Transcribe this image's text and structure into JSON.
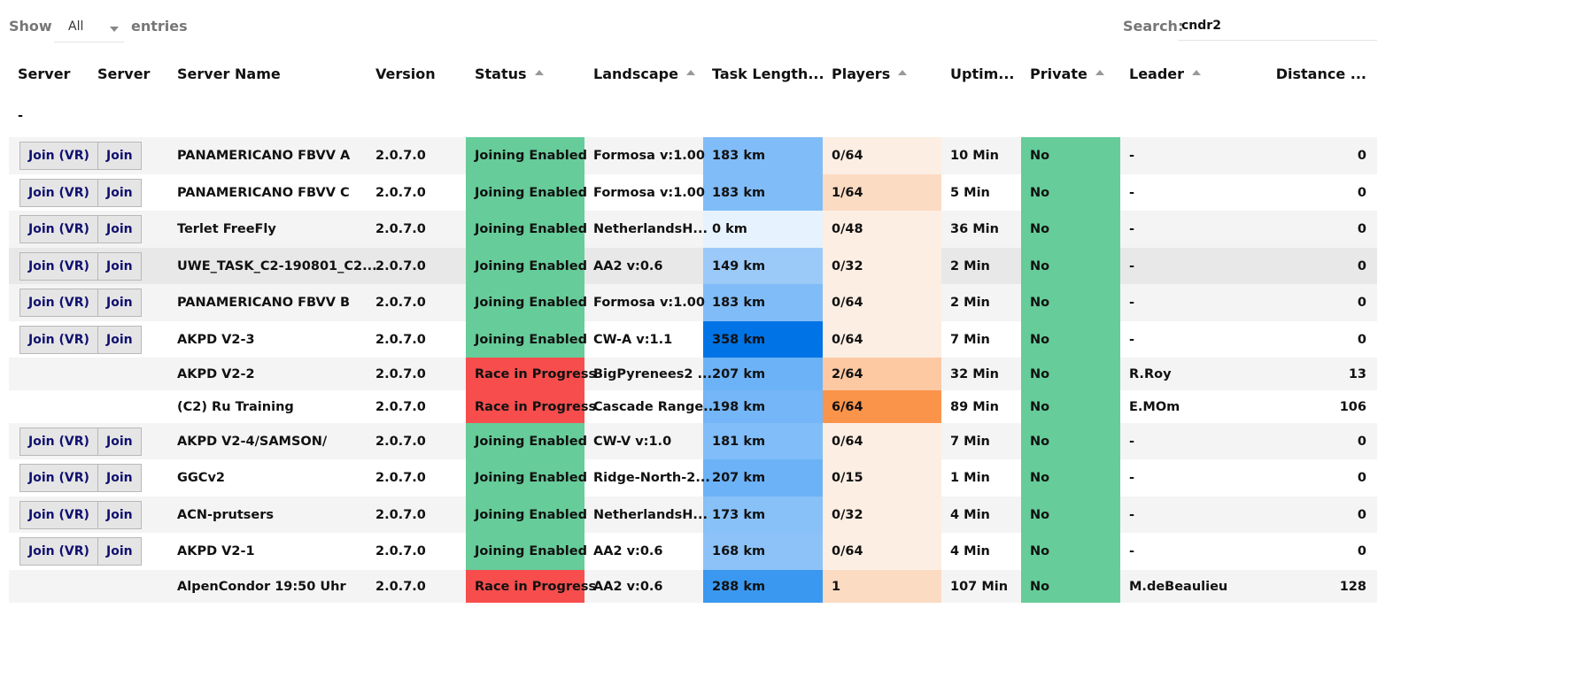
{
  "controls": {
    "show_label": "Show",
    "length_value": "All",
    "entries_label": "entries",
    "search_label": "Search:",
    "search_value": "cndr2"
  },
  "columns": [
    {
      "label": "Server",
      "sortable": false
    },
    {
      "label": "Server",
      "sortable": false
    },
    {
      "label": "Server Name",
      "sortable": false
    },
    {
      "label": "Version",
      "sortable": false
    },
    {
      "label": "Status",
      "sortable": true
    },
    {
      "label": "Landscape",
      "sortable": true
    },
    {
      "label": "Task Length...",
      "sortable": false
    },
    {
      "label": "Players",
      "sortable": true
    },
    {
      "label": "Uptim...",
      "sortable": false
    },
    {
      "label": "Private",
      "sortable": true
    },
    {
      "label": "Leader",
      "sortable": true
    },
    {
      "label": "Distance ...",
      "sortable": false
    }
  ],
  "filter_row": {
    "first": "-"
  },
  "buttons": {
    "join_vr": "Join (VR)",
    "join": "Join"
  },
  "colors": {
    "status_enabled": "#66cc99",
    "status_race": "#f74d4d",
    "private_no": "#66cc99",
    "task_scale": [
      "#e6f2fd",
      "#0073e6"
    ],
    "players_scale": [
      "#fdeee3",
      "#fb944b"
    ]
  },
  "rows": [
    {
      "joinable": true,
      "name": "PANAMERICANO FBVV A",
      "version": "2.0.7.0",
      "status": "Joining Enabled",
      "landscape": "Formosa v:1.00",
      "task": "183 km",
      "task_bg": "#80bcf8",
      "players": "0/64",
      "players_bg": "#fdeee3",
      "uptime": "10 Min",
      "private": "No",
      "leader": "-",
      "distance": "0"
    },
    {
      "joinable": true,
      "name": "PANAMERICANO FBVV C",
      "version": "2.0.7.0",
      "status": "Joining Enabled",
      "landscape": "Formosa v:1.00",
      "task": "183 km",
      "task_bg": "#80bcf8",
      "players": "1/64",
      "players_bg": "#fcdbc3",
      "uptime": "5 Min",
      "private": "No",
      "leader": "-",
      "distance": "0"
    },
    {
      "joinable": true,
      "name": "Terlet FreeFly",
      "version": "2.0.7.0",
      "status": "Joining Enabled",
      "landscape": "NetherlandsH...",
      "task": "0 km",
      "task_bg": "#e6f2fd",
      "players": "0/48",
      "players_bg": "#fdeee3",
      "uptime": "36 Min",
      "private": "No",
      "leader": "-",
      "distance": "0"
    },
    {
      "joinable": true,
      "name": "UWE_TASK_C2-190801_C2...",
      "version": "2.0.7.0",
      "status": "Joining Enabled",
      "landscape": "AA2 v:0.6",
      "task": "149 km",
      "task_bg": "#9bcaf9",
      "players": "0/32",
      "players_bg": "#fdeee3",
      "uptime": "2 Min",
      "private": "No",
      "leader": "-",
      "distance": "0"
    },
    {
      "joinable": true,
      "name": "PANAMERICANO FBVV B",
      "version": "2.0.7.0",
      "status": "Joining Enabled",
      "landscape": "Formosa v:1.00",
      "task": "183 km",
      "task_bg": "#80bcf8",
      "players": "0/64",
      "players_bg": "#fdeee3",
      "uptime": "2 Min",
      "private": "No",
      "leader": "-",
      "distance": "0"
    },
    {
      "joinable": true,
      "name": "AKPD V2-3",
      "version": "2.0.7.0",
      "status": "Joining Enabled",
      "landscape": "CW-A v:1.1",
      "task": "358 km",
      "task_bg": "#0073e6",
      "players": "0/64",
      "players_bg": "#fdeee3",
      "uptime": "7 Min",
      "private": "No",
      "leader": "-",
      "distance": "0"
    },
    {
      "joinable": false,
      "name": "AKPD V2-2",
      "version": "2.0.7.0",
      "status": "Race in Progress",
      "landscape": "BigPyrenees2 ...",
      "task": "207 km",
      "task_bg": "#6cb2f7",
      "players": "2/64",
      "players_bg": "#fcc9a3",
      "uptime": "32 Min",
      "private": "No",
      "leader": "R.Roy",
      "distance": "13"
    },
    {
      "joinable": false,
      "name": "(C2) Ru Training",
      "version": "2.0.7.0",
      "status": "Race in Progress",
      "landscape": "Cascade Range...",
      "task": "198 km",
      "task_bg": "#74b6f7",
      "players": "6/64",
      "players_bg": "#fb944b",
      "uptime": "89 Min",
      "private": "No",
      "leader": "E.MOm",
      "distance": "106"
    },
    {
      "joinable": true,
      "name": "AKPD V2-4/SAMSON/",
      "version": "2.0.7.0",
      "status": "Joining Enabled",
      "landscape": "CW-V v:1.0",
      "task": "181 km",
      "task_bg": "#81bdf8",
      "players": "0/64",
      "players_bg": "#fdeee3",
      "uptime": "7 Min",
      "private": "No",
      "leader": "-",
      "distance": "0"
    },
    {
      "joinable": true,
      "name": "GGCv2",
      "version": "2.0.7.0",
      "status": "Joining Enabled",
      "landscape": "Ridge-North-2...",
      "task": "207 km",
      "task_bg": "#6cb2f7",
      "players": "0/15",
      "players_bg": "#fdeee3",
      "uptime": "1 Min",
      "private": "No",
      "leader": "-",
      "distance": "0"
    },
    {
      "joinable": true,
      "name": "ACN-prutsers",
      "version": "2.0.7.0",
      "status": "Joining Enabled",
      "landscape": "NetherlandsH...",
      "task": "173 km",
      "task_bg": "#88c0f8",
      "players": "0/32",
      "players_bg": "#fdeee3",
      "uptime": "4 Min",
      "private": "No",
      "leader": "-",
      "distance": "0"
    },
    {
      "joinable": true,
      "name": "AKPD V2-1",
      "version": "2.0.7.0",
      "status": "Joining Enabled",
      "landscape": "AA2 v:0.6",
      "task": "168 km",
      "task_bg": "#8cc2f8",
      "players": "0/64",
      "players_bg": "#fdeee3",
      "uptime": "4 Min",
      "private": "No",
      "leader": "-",
      "distance": "0"
    },
    {
      "joinable": false,
      "name": "AlpenCondor 19:50 Uhr",
      "version": "2.0.7.0",
      "status": "Race in Progress",
      "landscape": "AA2 v:0.6",
      "task": "288 km",
      "task_bg": "#3a98f0",
      "players": "1",
      "players_bg": "#fcdbc3",
      "uptime": "107 Min",
      "private": "No",
      "leader": "M.deBeaulieu",
      "distance": "128"
    }
  ]
}
